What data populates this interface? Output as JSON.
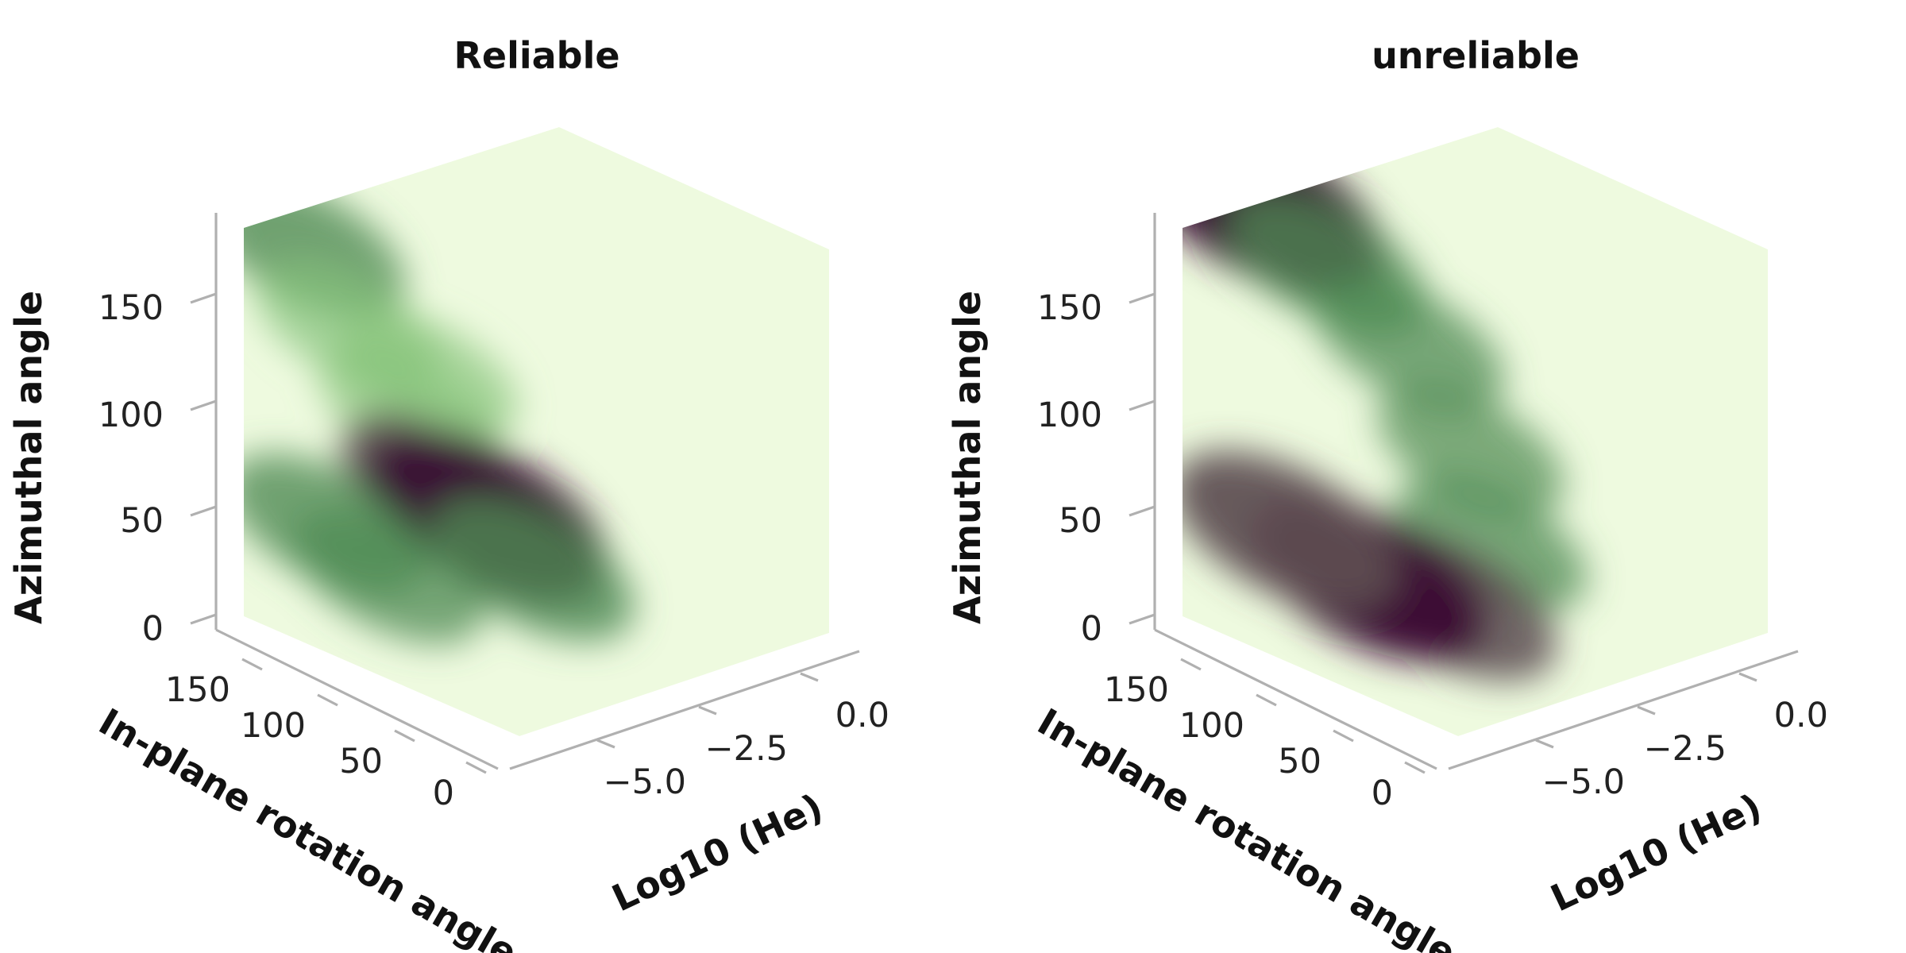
{
  "colors": {
    "colormap": [
      "#eefadf",
      "#c9eab2",
      "#87c47c",
      "#4f8a54",
      "#5d4d52",
      "#3b0f35"
    ],
    "axis": "#b0b0b0",
    "text": "#111111"
  },
  "chart_data": [
    {
      "type": "heatmap",
      "title": "Reliable",
      "xlabel": "Log10 (He)",
      "ylabel": "In-plane rotation angle",
      "zlabel": "Azimuthal angle",
      "x_ticks": [
        "−5.0",
        "−2.5",
        "0.0"
      ],
      "y_ticks": [
        "150",
        "100",
        "50",
        "0"
      ],
      "z_ticks": [
        "0",
        "50",
        "100",
        "150"
      ],
      "x_range": [
        -6.5,
        1.0
      ],
      "y_range": [
        0,
        180
      ],
      "z_range": [
        0,
        180
      ],
      "density_blobs": [
        {
          "y": 150,
          "z": 180,
          "intensity": 0.55
        },
        {
          "y": 130,
          "z": 150,
          "intensity": 0.35
        },
        {
          "y": 100,
          "z": 120,
          "intensity": 0.3
        },
        {
          "y": 80,
          "z": 90,
          "intensity": 0.75
        },
        {
          "y": 62,
          "z": 82,
          "intensity": 1.0
        },
        {
          "y": 40,
          "z": 65,
          "intensity": 0.6
        },
        {
          "y": 140,
          "z": 55,
          "intensity": 0.55
        },
        {
          "y": 110,
          "z": 40,
          "intensity": 0.45
        },
        {
          "y": 90,
          "z": 140,
          "intensity": 0.3
        }
      ]
    },
    {
      "type": "heatmap",
      "title": "unreliable",
      "xlabel": "Log10 (He)",
      "ylabel": "In-plane rotation angle",
      "zlabel": "Azimuthal angle",
      "x_ticks": [
        "−5.0",
        "−2.5",
        "0.0"
      ],
      "y_ticks": [
        "150",
        "100",
        "50",
        "0"
      ],
      "z_ticks": [
        "0",
        "50",
        "100",
        "150"
      ],
      "x_range": [
        -6.5,
        1.0
      ],
      "y_range": [
        0,
        180
      ],
      "z_range": [
        0,
        180
      ],
      "density_blobs": [
        {
          "y": 170,
          "z": 210,
          "intensity": 0.9
        },
        {
          "y": 140,
          "z": 200,
          "intensity": 1.0
        },
        {
          "y": 110,
          "z": 185,
          "intensity": 0.55
        },
        {
          "y": 70,
          "z": 160,
          "intensity": 0.45
        },
        {
          "y": 40,
          "z": 120,
          "intensity": 0.4
        },
        {
          "y": 30,
          "z": 80,
          "intensity": 0.45
        },
        {
          "y": 50,
          "z": 45,
          "intensity": 0.7
        },
        {
          "y": 90,
          "z": 45,
          "intensity": 0.95
        },
        {
          "y": 130,
          "z": 55,
          "intensity": 0.85
        }
      ]
    }
  ]
}
